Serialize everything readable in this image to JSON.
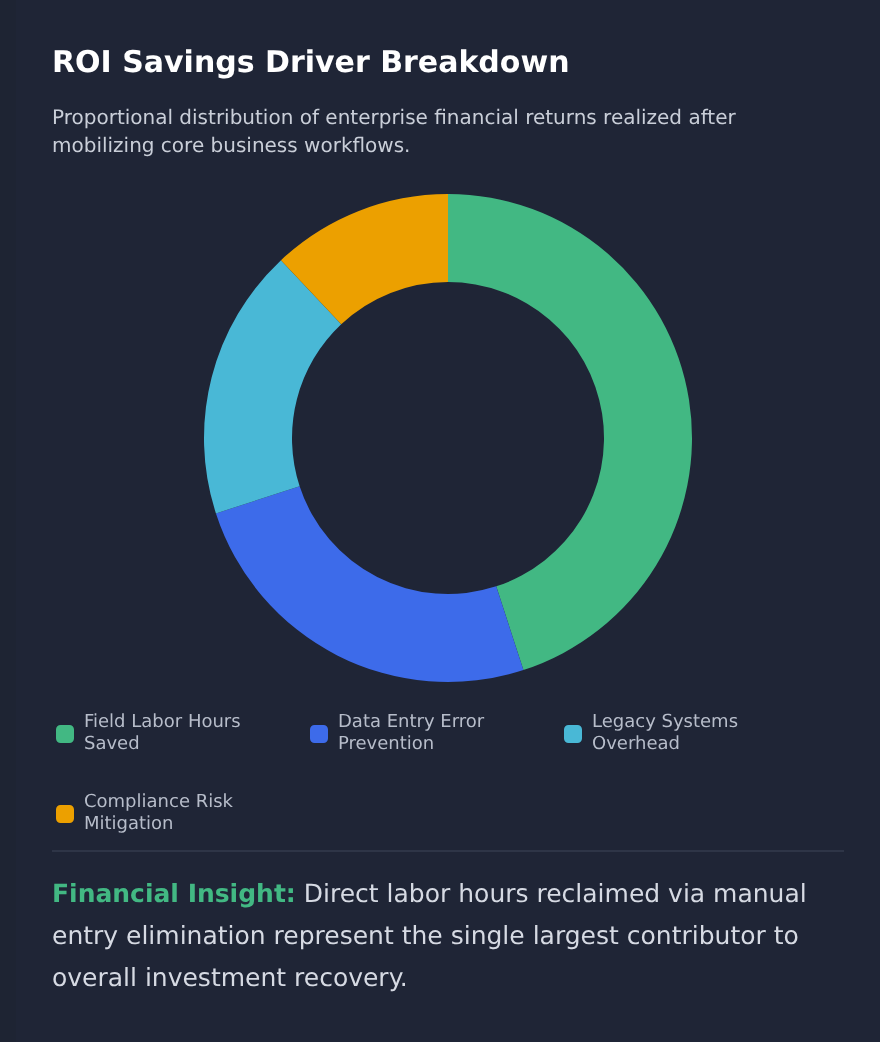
{
  "chart_data": {
    "type": "donut",
    "title": "ROI Savings Driver Breakdown",
    "subtitle": "Proportional distribution of enterprise financial returns realized after mobilizing core business workflows.",
    "categories": [
      "Field Labor Hours Saved",
      "Data Entry Error Prevention",
      "Legacy Systems Overhead",
      "Compliance Risk Mitigation"
    ],
    "values": [
      45,
      25,
      18,
      12
    ],
    "colors": [
      "#42b883",
      "#3d6bea",
      "#49b8d6",
      "#eca000"
    ],
    "legend": "bottom",
    "annotations": [
      "Financial Insight: Direct labor hours reclaimed via manual entry elimination represent the single largest contributor to overall investment recovery."
    ]
  }
}
